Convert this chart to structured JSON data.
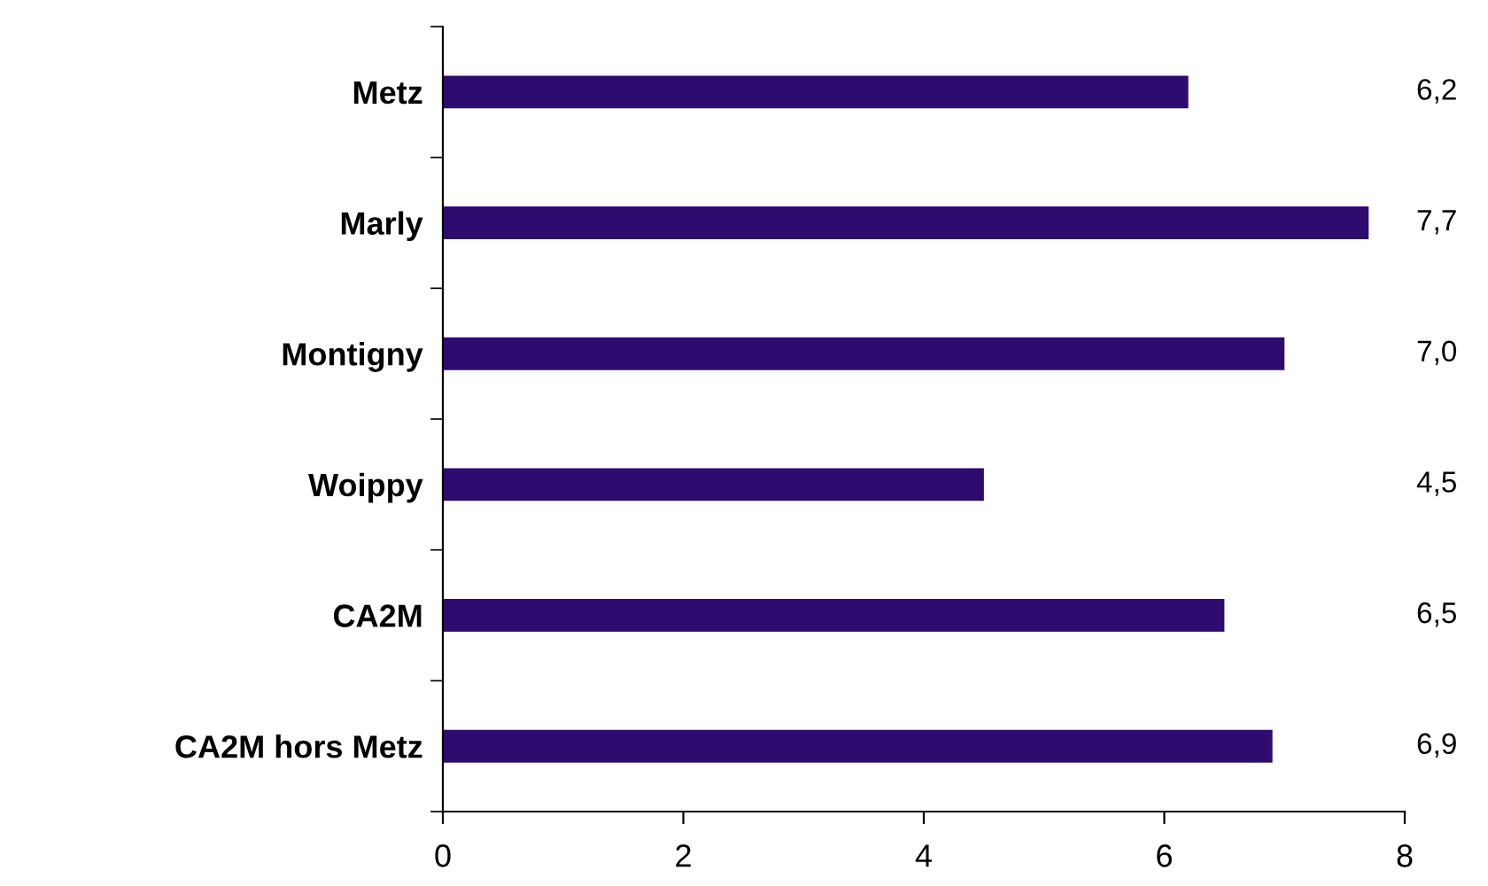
{
  "chart_data": {
    "type": "bar",
    "orientation": "horizontal",
    "categories": [
      "Metz",
      "Marly",
      "Montigny",
      "Woippy",
      "CA2M",
      "CA2M hors Metz"
    ],
    "values": [
      6.2,
      7.7,
      7.0,
      4.5,
      6.5,
      6.9
    ],
    "value_labels": [
      "6,2",
      "7,7",
      "7,0",
      "4,5",
      "6,5",
      "6,9"
    ],
    "color": "#2e0b6e",
    "xlim": [
      0,
      8
    ],
    "xticks": [
      0,
      2,
      4,
      6,
      8
    ],
    "grid": false,
    "legend": false
  }
}
